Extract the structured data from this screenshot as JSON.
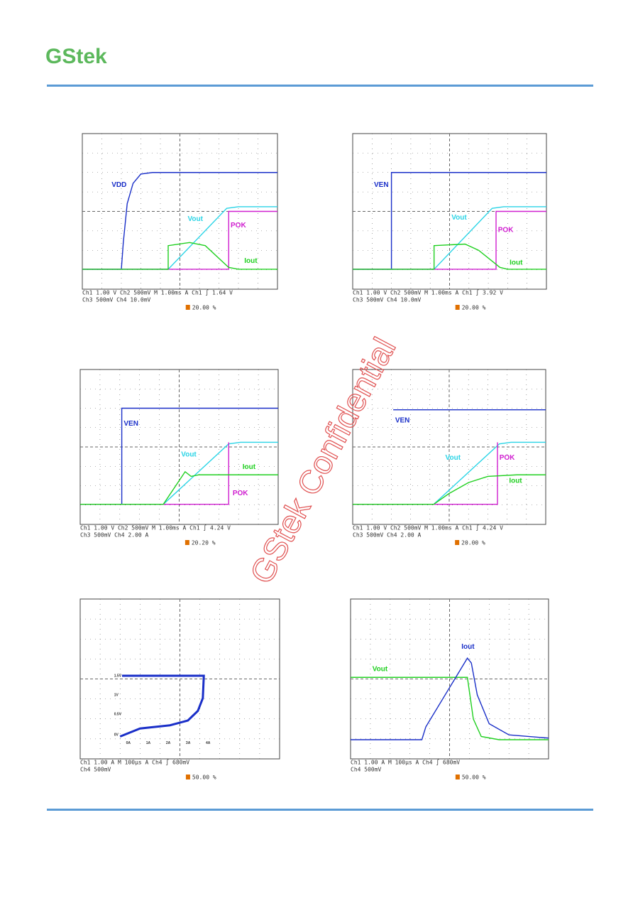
{
  "header": {
    "logo": "GStek"
  },
  "watermark": "GStek Confidential",
  "scopes": [
    {
      "labels": [
        "VDD",
        "Vout",
        "POK",
        "Iout"
      ],
      "status": [
        "Ch1  1.00 V  Ch2  500mV  M 1.00ms  A  Ch1 ∫ 1.64 V",
        "Ch3  500mV   Ch4  10.0mV"
      ],
      "trigger": "20.00 %"
    },
    {
      "labels": [
        "VEN",
        "Vout",
        "POK",
        "Iout"
      ],
      "status": [
        "Ch1  1.00 V  Ch2  500mV  M 1.00ms  A  Ch1 ∫ 3.92 V",
        "Ch3  500mV   Ch4  10.0mV"
      ],
      "trigger": "20.00 %"
    },
    {
      "labels": [
        "VEN",
        "Vout",
        "Iout",
        "POK"
      ],
      "status": [
        "Ch1  1.00 V  Ch2  500mV  M 1.00ms  A  Ch1 ∫ 4.24 V",
        "Ch3  500mV   Ch4  2.00 A"
      ],
      "trigger": "20.20 %"
    },
    {
      "labels": [
        "VEN",
        "Vout",
        "POK",
        "Iout"
      ],
      "status": [
        "Ch1  1.00 V  Ch2  500mV  M 1.00ms  A  Ch1 ∫ 4.24 V",
        "Ch3  500mV   Ch4  2.00 A"
      ],
      "trigger": "20.00 %"
    },
    {
      "labels": [
        "1.5V",
        "1V",
        "0.5V",
        "0V",
        "0A",
        "1A",
        "2A",
        "3A",
        "4A"
      ],
      "status": [
        "Ch1  1.00 A   M 100µs  A  Ch4 ∫ 680mV",
        "Ch4  500mV"
      ],
      "trigger": "50.00 %"
    },
    {
      "labels": [
        "Iout",
        "Vout"
      ],
      "status": [
        "Ch1  1.00 A   M 100µs  A  Ch4 ∫ 680mV",
        "Ch4  500mV"
      ],
      "trigger": "50.00 %"
    }
  ]
}
